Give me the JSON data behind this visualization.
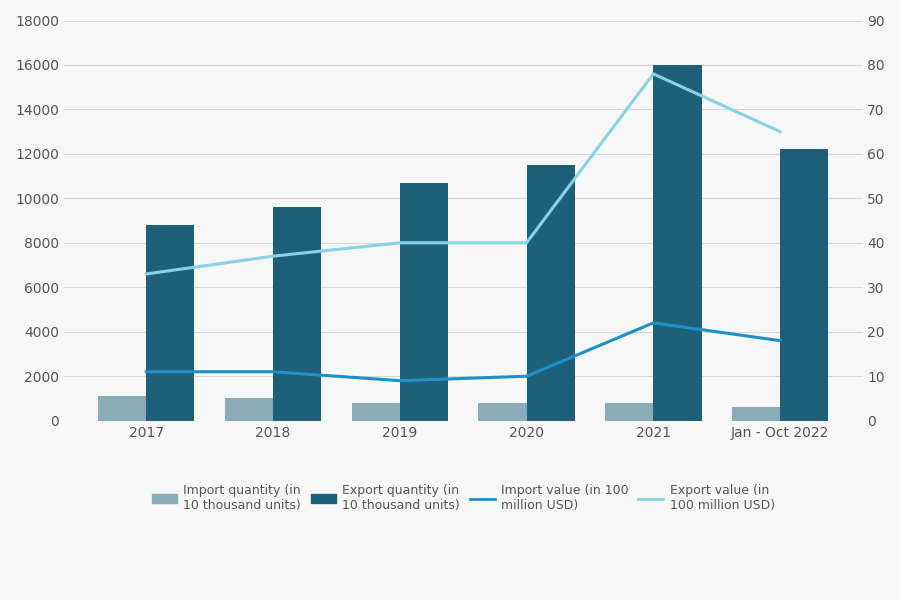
{
  "years": [
    "2017",
    "2018",
    "2019",
    "2020",
    "2021",
    "Jan - Oct 2022"
  ],
  "import_quantity": [
    1100,
    1000,
    800,
    800,
    800,
    600
  ],
  "export_quantity": [
    8800,
    9600,
    10700,
    11500,
    16000,
    12200
  ],
  "import_value": [
    11,
    11,
    9,
    10,
    22,
    18
  ],
  "export_value": [
    33,
    37,
    40,
    40,
    78,
    65
  ],
  "import_qty_color": "#8aabb8",
  "export_qty_color": "#1e5f7a",
  "import_val_color": "#1e90c8",
  "export_val_color": "#87d3e8",
  "bar_width": 0.38,
  "ylim_left": [
    0,
    18000
  ],
  "ylim_right": [
    0,
    90
  ],
  "yticks_left": [
    0,
    2000,
    4000,
    6000,
    8000,
    10000,
    12000,
    14000,
    16000,
    18000
  ],
  "yticks_right": [
    0,
    10,
    20,
    30,
    40,
    50,
    60,
    70,
    80,
    90
  ],
  "background_color": "#f7f7f7",
  "legend_import_qty": "Import quantity (in\n10 thousand units)",
  "legend_export_qty": "Export quantity (in\n10 thousand units)",
  "legend_import_val": "Import value (in 100\nmillion USD)",
  "legend_export_val": "Export value (in\n100 million USD)",
  "grid_color": "#d8d8d8",
  "tick_label_color": "#555555",
  "tick_label_fontsize": 10
}
